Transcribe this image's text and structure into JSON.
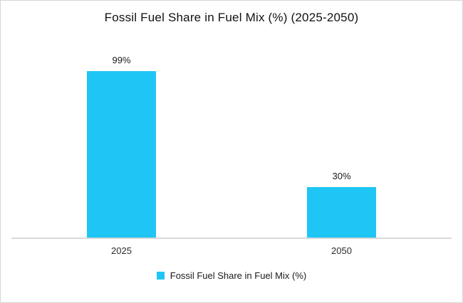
{
  "chart": {
    "title": "Fossil Fuel Share in Fuel Mix (%) (2025-2050)"
  },
  "chart_data": {
    "type": "bar",
    "title": "Fossil Fuel Share in Fuel Mix (%) (2025-2050)",
    "categories": [
      "2025",
      "2050"
    ],
    "values": [
      99,
      30
    ],
    "value_labels": [
      "99%",
      "30%"
    ],
    "xlabel": "",
    "ylabel": "",
    "ylim": [
      0,
      100
    ],
    "grid": false,
    "legend": {
      "position": "bottom",
      "entries": [
        "Fossil Fuel Share in Fuel Mix (%)"
      ]
    },
    "bar_color": "#1fc6f5",
    "axis_line_color": "#d9d9d9"
  }
}
